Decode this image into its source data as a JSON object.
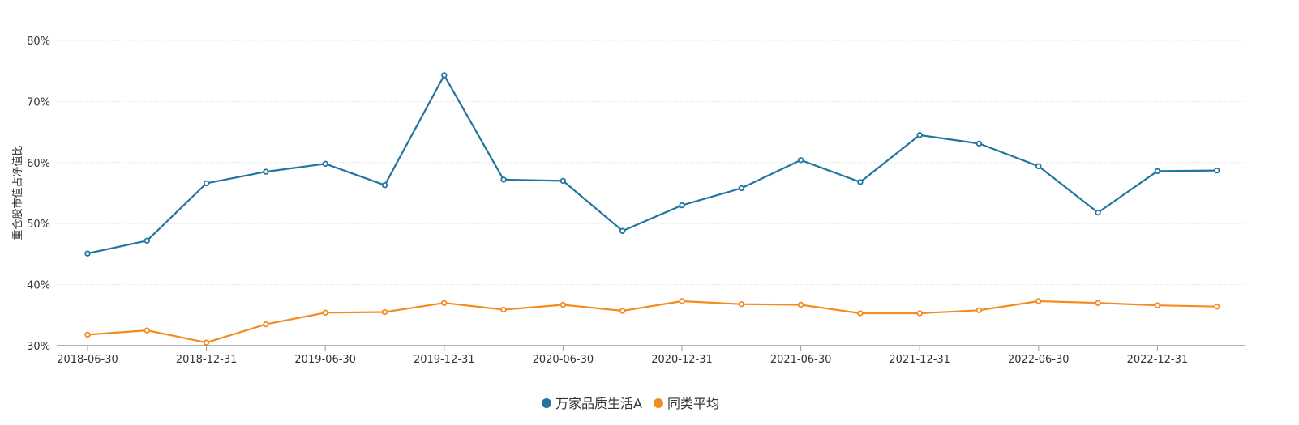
{
  "chart_data": {
    "type": "line",
    "title": "",
    "xlabel": "",
    "ylabel": "重仓股市值占净值比",
    "ylim": [
      30,
      80
    ],
    "y_tick_labels": [
      "30%",
      "40%",
      "50%",
      "60%",
      "70%",
      "80%"
    ],
    "y_ticks": [
      30,
      40,
      50,
      60,
      70,
      80
    ],
    "x": [
      "2018-06-30",
      "2018-09-30",
      "2018-12-31",
      "2019-03-31",
      "2019-06-30",
      "2019-09-30",
      "2019-12-31",
      "2020-03-31",
      "2020-06-30",
      "2020-09-30",
      "2020-12-31",
      "2021-03-31",
      "2021-06-30",
      "2021-09-30",
      "2021-12-31",
      "2022-03-31",
      "2022-06-30",
      "2022-09-30",
      "2022-12-31",
      "2023-03-31"
    ],
    "x_tick_labels": [
      "2018-06-30",
      "2018-12-31",
      "2019-06-30",
      "2019-12-31",
      "2020-06-30",
      "2020-12-31",
      "2021-06-30",
      "2021-12-31",
      "2022-06-30",
      "2022-12-31"
    ],
    "grid": true,
    "legend_position": "bottom-center",
    "series": [
      {
        "name": "万家品质生活A",
        "color": "#21759f",
        "values": [
          45.1,
          47.2,
          56.6,
          58.5,
          59.8,
          56.3,
          74.3,
          57.2,
          57.0,
          48.8,
          53.0,
          55.8,
          60.4,
          56.8,
          64.5,
          63.1,
          59.4,
          51.8,
          58.6,
          58.7
        ]
      },
      {
        "name": "同类平均",
        "color": "#f48b1f",
        "values": [
          31.8,
          32.5,
          30.5,
          33.5,
          35.4,
          35.5,
          37.0,
          35.9,
          36.7,
          35.7,
          37.3,
          36.8,
          36.7,
          35.3,
          35.3,
          35.8,
          37.3,
          37.0,
          36.6,
          36.4
        ]
      }
    ]
  }
}
